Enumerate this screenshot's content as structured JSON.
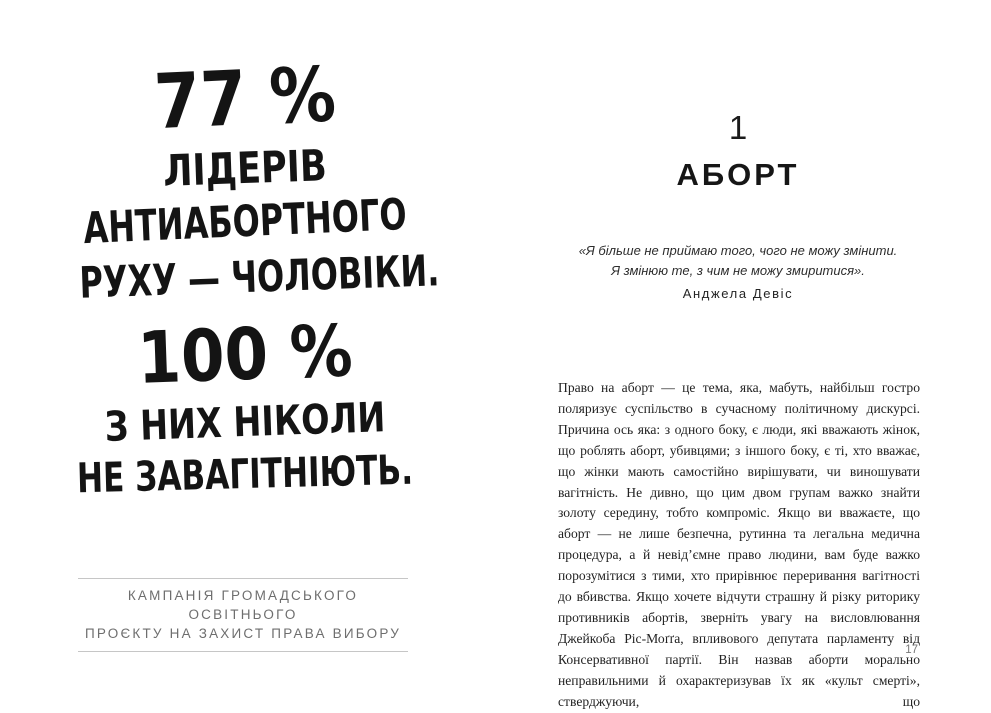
{
  "left_page": {
    "headline_lines": [
      "77 %",
      "ЛІДЕРІВ",
      "АНТИАБОРТНОГО",
      "РУХУ — ЧОЛОВІКИ.",
      "100 %",
      "З НИХ НІКОЛИ",
      "НЕ ЗАВАГІТНІЮТЬ."
    ],
    "caption_lines": [
      "КАМПАНІЯ ГРОМАДСЬКОГО ОСВІТНЬОГО",
      "ПРОЄКТУ НА ЗАХИСТ ПРАВА ВИБОРУ"
    ]
  },
  "right_page": {
    "chapter_number": "1",
    "chapter_title": "АБОРТ",
    "epigraph": {
      "line1": "«Я більше не приймаю того, чого не можу змінити.",
      "line2": "Я змінюю те, з чим не можу змиритися».",
      "author": "Анджела Девіс"
    },
    "body_paragraph": "Право на аборт — це тема, яка, мабуть, найбільш гостро поляризує суспільство в сучасному політичному дискурсі. Причина ось яка: з одного боку, є люди, які вважають жінок, що роблять аборт, убивцями; з іншого боку, є ті, хто вважає, що жінки мають самостійно вирішувати, чи виношувати вагітність. Не дивно, що цим двом групам важко знайти золоту середину, тобто компроміс. Якщо ви вважаєте, що аборт — не лише безпечна, рутинна та легальна медична процедура, а й невід’ємне право людини, вам буде важко порозумітися з тими, хто прирівнює переривання вагітності до вбивства. Якщо хочете відчути страшну й різку риторику противників абортів, зверніть увагу на висловлювання Джейкоба Ріс-Моґґа, впливового депутата парламенту від Консервативної партії. Він назвав аборти морально неправильними й охарактеризував їх як «культ смерті», стверджуючи, що",
    "page_number": "17"
  },
  "colors": {
    "ink": "#141414",
    "body_text": "#222222",
    "caption_gray": "#6e6e6e",
    "rule_gray": "#c6c6c6",
    "page_number_gray": "#7a7a7a",
    "background": "#ffffff"
  }
}
